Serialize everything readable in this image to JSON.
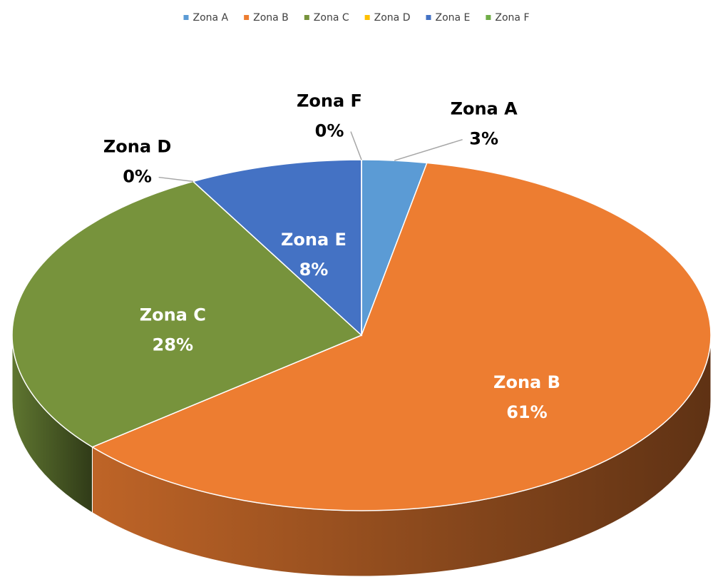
{
  "chart_data": {
    "type": "pie3d",
    "categories": [
      "Zona A",
      "Zona B",
      "Zona C",
      "Zona D",
      "Zona E",
      "Zona F"
    ],
    "values": [
      3,
      61,
      28,
      0,
      8,
      0
    ],
    "value_labels": [
      "3%",
      "61%",
      "28%",
      "0%",
      "8%",
      "0%"
    ],
    "colors": [
      "#5b9bd5",
      "#ed7d31",
      "#77933c",
      "#ffc000",
      "#4472c4",
      "#70ad47"
    ],
    "legend": "top"
  }
}
